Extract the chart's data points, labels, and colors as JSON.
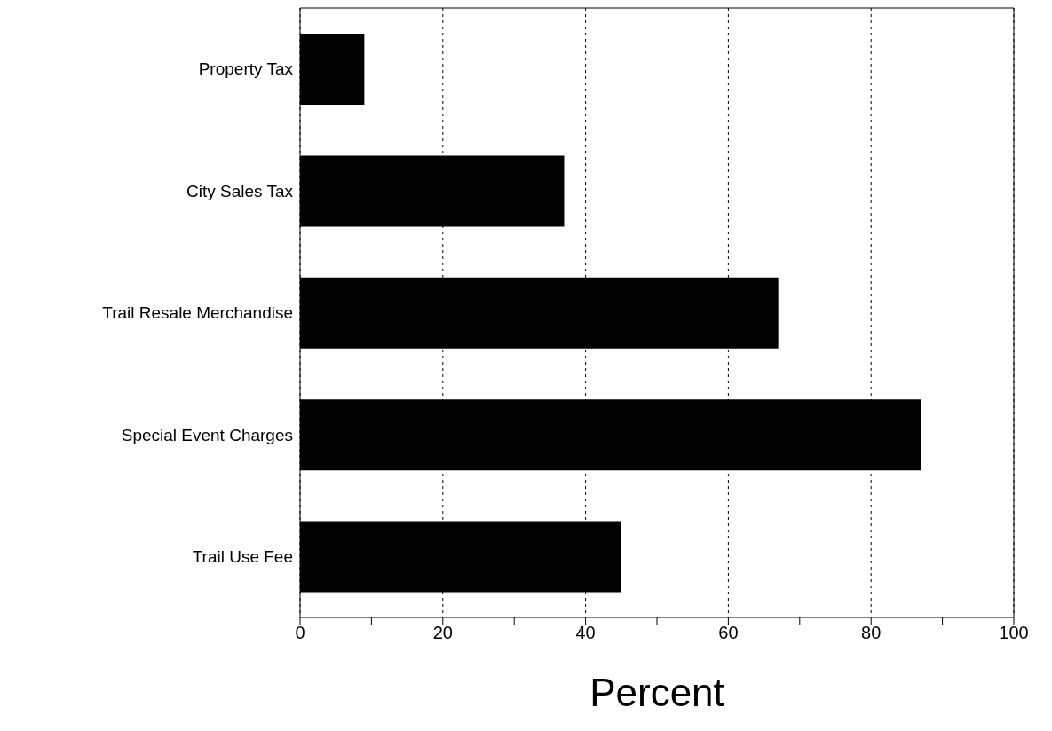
{
  "chart_data": {
    "type": "bar",
    "orientation": "horizontal",
    "xlabel": "Percent",
    "categories": [
      "Property Tax",
      "City Sales Tax",
      "Trail Resale Merchandise",
      "Special Event Charges",
      "Trail Use Fee"
    ],
    "values": [
      9,
      37,
      67,
      87,
      45
    ],
    "color": "#000000",
    "xlim": [
      0,
      100
    ],
    "xticks": [
      0,
      {
        "value": 10,
        "label": null
      },
      20,
      {
        "value": 30,
        "label": null
      },
      40,
      {
        "value": 50,
        "label": null
      },
      60,
      {
        "value": 70,
        "label": null
      },
      80,
      {
        "value": 90,
        "label": null
      },
      100
    ],
    "grid": "x"
  }
}
